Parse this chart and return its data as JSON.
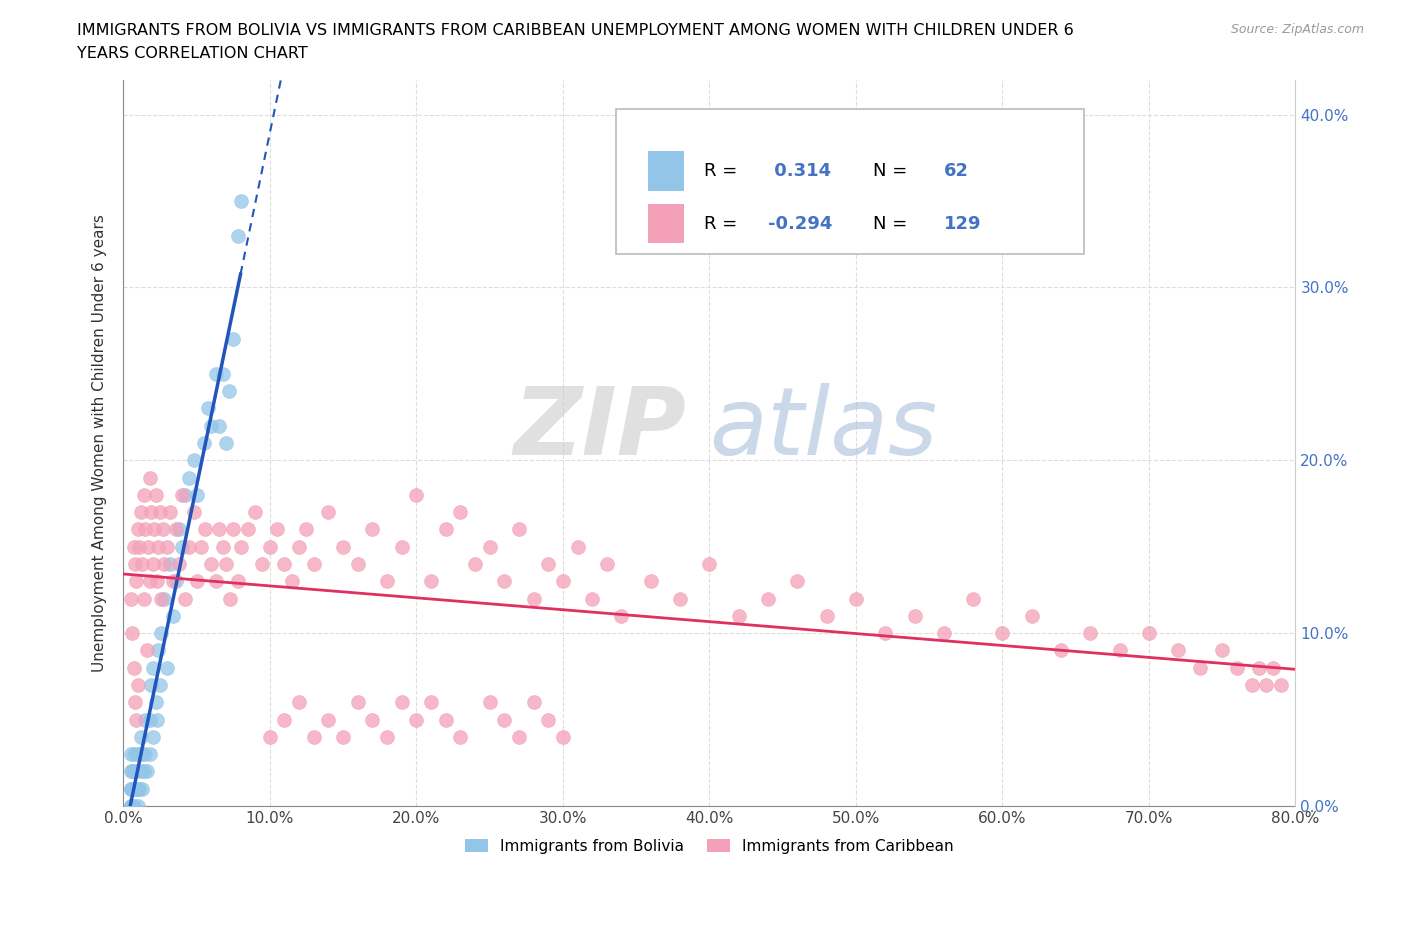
{
  "title_line1": "IMMIGRANTS FROM BOLIVIA VS IMMIGRANTS FROM CARIBBEAN UNEMPLOYMENT AMONG WOMEN WITH CHILDREN UNDER 6",
  "title_line2": "YEARS CORRELATION CHART",
  "source": "Source: ZipAtlas.com",
  "ylabel": "Unemployment Among Women with Children Under 6 years",
  "r_bolivia": 0.314,
  "n_bolivia": 62,
  "r_caribbean": -0.294,
  "n_caribbean": 129,
  "color_bolivia": "#92C5E8",
  "color_caribbean": "#F4A0B8",
  "line_color_bolivia": "#2255BB",
  "line_color_caribbean": "#E03060",
  "xlim": [
    0,
    0.8
  ],
  "ylim": [
    0,
    0.42
  ],
  "xticks": [
    0.0,
    0.1,
    0.2,
    0.3,
    0.4,
    0.5,
    0.6,
    0.7,
    0.8
  ],
  "yticks": [
    0.0,
    0.1,
    0.2,
    0.3,
    0.4
  ],
  "ytick_labels_right": [
    "0.0%",
    "10.0%",
    "20.0%",
    "30.0%",
    "40.0%"
  ],
  "bolivia_x": [
    0.005,
    0.005,
    0.005,
    0.005,
    0.005,
    0.005,
    0.005,
    0.006,
    0.006,
    0.006,
    0.007,
    0.007,
    0.007,
    0.008,
    0.008,
    0.009,
    0.009,
    0.01,
    0.01,
    0.01,
    0.011,
    0.011,
    0.012,
    0.012,
    0.013,
    0.013,
    0.014,
    0.015,
    0.015,
    0.016,
    0.018,
    0.018,
    0.019,
    0.02,
    0.02,
    0.022,
    0.023,
    0.024,
    0.025,
    0.026,
    0.028,
    0.03,
    0.032,
    0.034,
    0.036,
    0.038,
    0.04,
    0.042,
    0.045,
    0.048,
    0.05,
    0.055,
    0.058,
    0.06,
    0.063,
    0.065,
    0.068,
    0.07,
    0.072,
    0.075,
    0.078,
    0.08
  ],
  "bolivia_y": [
    0.0,
    0.0,
    0.0,
    0.01,
    0.01,
    0.02,
    0.03,
    0.0,
    0.01,
    0.02,
    0.0,
    0.01,
    0.03,
    0.01,
    0.02,
    0.01,
    0.02,
    0.0,
    0.01,
    0.03,
    0.01,
    0.03,
    0.02,
    0.04,
    0.01,
    0.03,
    0.02,
    0.03,
    0.05,
    0.02,
    0.03,
    0.05,
    0.07,
    0.04,
    0.08,
    0.06,
    0.05,
    0.09,
    0.07,
    0.1,
    0.12,
    0.08,
    0.14,
    0.11,
    0.13,
    0.16,
    0.15,
    0.18,
    0.19,
    0.2,
    0.18,
    0.21,
    0.23,
    0.22,
    0.25,
    0.22,
    0.25,
    0.21,
    0.24,
    0.27,
    0.33,
    0.35
  ],
  "caribbean_x": [
    0.005,
    0.006,
    0.007,
    0.007,
    0.008,
    0.008,
    0.009,
    0.009,
    0.01,
    0.01,
    0.011,
    0.012,
    0.013,
    0.014,
    0.014,
    0.015,
    0.016,
    0.017,
    0.018,
    0.018,
    0.019,
    0.02,
    0.021,
    0.022,
    0.023,
    0.024,
    0.025,
    0.026,
    0.027,
    0.028,
    0.03,
    0.032,
    0.034,
    0.036,
    0.038,
    0.04,
    0.042,
    0.045,
    0.048,
    0.05,
    0.053,
    0.056,
    0.06,
    0.063,
    0.065,
    0.068,
    0.07,
    0.073,
    0.075,
    0.078,
    0.08,
    0.085,
    0.09,
    0.095,
    0.1,
    0.105,
    0.11,
    0.115,
    0.12,
    0.125,
    0.13,
    0.14,
    0.15,
    0.16,
    0.17,
    0.18,
    0.19,
    0.2,
    0.21,
    0.22,
    0.23,
    0.24,
    0.25,
    0.26,
    0.27,
    0.28,
    0.29,
    0.3,
    0.31,
    0.32,
    0.33,
    0.34,
    0.36,
    0.38,
    0.4,
    0.42,
    0.44,
    0.46,
    0.48,
    0.5,
    0.52,
    0.54,
    0.56,
    0.58,
    0.6,
    0.62,
    0.64,
    0.66,
    0.68,
    0.7,
    0.72,
    0.735,
    0.75,
    0.76,
    0.77,
    0.775,
    0.78,
    0.785,
    0.79,
    0.1,
    0.11,
    0.12,
    0.13,
    0.14,
    0.15,
    0.16,
    0.17,
    0.18,
    0.19,
    0.2,
    0.21,
    0.22,
    0.23,
    0.25,
    0.26,
    0.27,
    0.28,
    0.29,
    0.3
  ],
  "caribbean_y": [
    0.12,
    0.1,
    0.15,
    0.08,
    0.14,
    0.06,
    0.13,
    0.05,
    0.16,
    0.07,
    0.15,
    0.17,
    0.14,
    0.18,
    0.12,
    0.16,
    0.09,
    0.15,
    0.19,
    0.13,
    0.17,
    0.14,
    0.16,
    0.18,
    0.13,
    0.15,
    0.17,
    0.12,
    0.16,
    0.14,
    0.15,
    0.17,
    0.13,
    0.16,
    0.14,
    0.18,
    0.12,
    0.15,
    0.17,
    0.13,
    0.15,
    0.16,
    0.14,
    0.13,
    0.16,
    0.15,
    0.14,
    0.12,
    0.16,
    0.13,
    0.15,
    0.16,
    0.17,
    0.14,
    0.15,
    0.16,
    0.14,
    0.13,
    0.15,
    0.16,
    0.14,
    0.17,
    0.15,
    0.14,
    0.16,
    0.13,
    0.15,
    0.18,
    0.13,
    0.16,
    0.17,
    0.14,
    0.15,
    0.13,
    0.16,
    0.12,
    0.14,
    0.13,
    0.15,
    0.12,
    0.14,
    0.11,
    0.13,
    0.12,
    0.14,
    0.11,
    0.12,
    0.13,
    0.11,
    0.12,
    0.1,
    0.11,
    0.1,
    0.12,
    0.1,
    0.11,
    0.09,
    0.1,
    0.09,
    0.1,
    0.09,
    0.08,
    0.09,
    0.08,
    0.07,
    0.08,
    0.07,
    0.08,
    0.07,
    0.04,
    0.05,
    0.06,
    0.04,
    0.05,
    0.04,
    0.06,
    0.05,
    0.04,
    0.06,
    0.05,
    0.06,
    0.05,
    0.04,
    0.06,
    0.05,
    0.04,
    0.06,
    0.05,
    0.04
  ]
}
